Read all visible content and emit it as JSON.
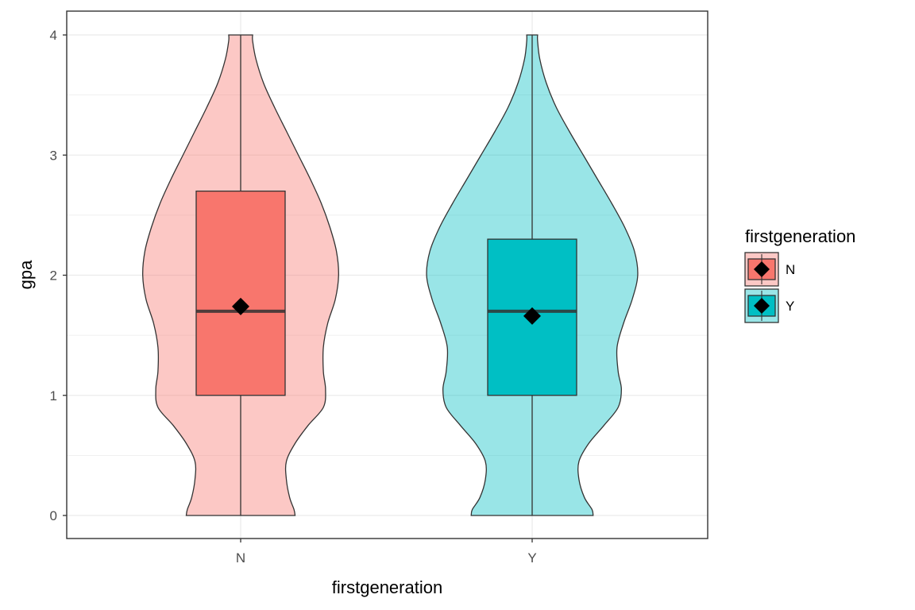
{
  "chart_data": {
    "type": "violin",
    "xlabel": "firstgeneration",
    "ylabel": "gpa",
    "categories": [
      "N",
      "Y"
    ],
    "ylim": [
      -0.2,
      4.2
    ],
    "yticks": [
      0,
      1,
      2,
      3,
      4
    ],
    "grid": true,
    "legend": {
      "title": "firstgeneration",
      "placement": "right",
      "entries": [
        "N",
        "Y"
      ]
    },
    "colors": {
      "N": "#F8766D",
      "Y": "#00BFC4",
      "mean_marker": "#000000",
      "outline": "#333333"
    },
    "series": [
      {
        "name": "N",
        "box": {
          "q1": 1.0,
          "median": 1.7,
          "q3": 2.7,
          "whisker_low": 0.0,
          "whisker_high": 4.0
        },
        "mean": 1.74,
        "violin_profile": [
          [
            0.0,
            0.5
          ],
          [
            0.05,
            0.49
          ],
          [
            0.15,
            0.45
          ],
          [
            0.3,
            0.42
          ],
          [
            0.45,
            0.42
          ],
          [
            0.6,
            0.5
          ],
          [
            0.75,
            0.62
          ],
          [
            0.9,
            0.76
          ],
          [
            1.05,
            0.78
          ],
          [
            1.2,
            0.76
          ],
          [
            1.4,
            0.76
          ],
          [
            1.6,
            0.8
          ],
          [
            1.8,
            0.87
          ],
          [
            2.0,
            0.9
          ],
          [
            2.2,
            0.88
          ],
          [
            2.4,
            0.82
          ],
          [
            2.6,
            0.74
          ],
          [
            2.8,
            0.64
          ],
          [
            3.0,
            0.53
          ],
          [
            3.2,
            0.42
          ],
          [
            3.4,
            0.31
          ],
          [
            3.6,
            0.21
          ],
          [
            3.8,
            0.14
          ],
          [
            3.95,
            0.11
          ],
          [
            4.0,
            0.11
          ]
        ]
      },
      {
        "name": "Y",
        "box": {
          "q1": 1.0,
          "median": 1.7,
          "q3": 2.3,
          "whisker_low": 0.0,
          "whisker_high": 4.0
        },
        "mean": 1.66,
        "violin_profile": [
          [
            0.0,
            0.56
          ],
          [
            0.05,
            0.55
          ],
          [
            0.15,
            0.48
          ],
          [
            0.3,
            0.43
          ],
          [
            0.45,
            0.43
          ],
          [
            0.6,
            0.52
          ],
          [
            0.75,
            0.66
          ],
          [
            0.9,
            0.79
          ],
          [
            1.05,
            0.82
          ],
          [
            1.2,
            0.79
          ],
          [
            1.4,
            0.78
          ],
          [
            1.6,
            0.84
          ],
          [
            1.8,
            0.92
          ],
          [
            2.0,
            0.97
          ],
          [
            2.2,
            0.94
          ],
          [
            2.4,
            0.85
          ],
          [
            2.6,
            0.73
          ],
          [
            2.8,
            0.6
          ],
          [
            3.0,
            0.47
          ],
          [
            3.2,
            0.34
          ],
          [
            3.4,
            0.22
          ],
          [
            3.6,
            0.13
          ],
          [
            3.8,
            0.07
          ],
          [
            3.95,
            0.05
          ],
          [
            4.0,
            0.05
          ]
        ]
      }
    ]
  }
}
